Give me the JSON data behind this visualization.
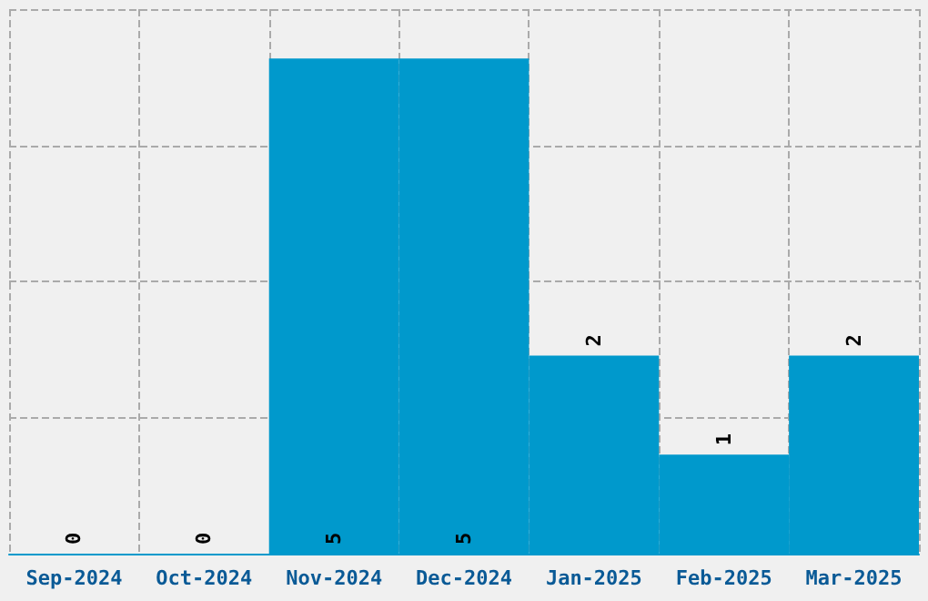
{
  "chart_data": {
    "type": "bar",
    "categories": [
      "Sep-2024",
      "Oct-2024",
      "Nov-2024",
      "Dec-2024",
      "Jan-2025",
      "Feb-2025",
      "Mar-2025"
    ],
    "values": [
      0,
      0,
      5,
      5,
      2,
      1,
      2
    ],
    "color": "#0099cc",
    "data_labels": true,
    "ylim": [
      0,
      5.5
    ],
    "yticks": [
      {
        "value": 0,
        "label": null
      },
      {
        "value": 1.375,
        "label": null
      },
      {
        "value": 2.75,
        "label": null
      },
      {
        "value": 4.125,
        "label": null
      },
      {
        "value": 5.5,
        "label": null
      }
    ],
    "grid": true,
    "tick_labels": "x"
  }
}
